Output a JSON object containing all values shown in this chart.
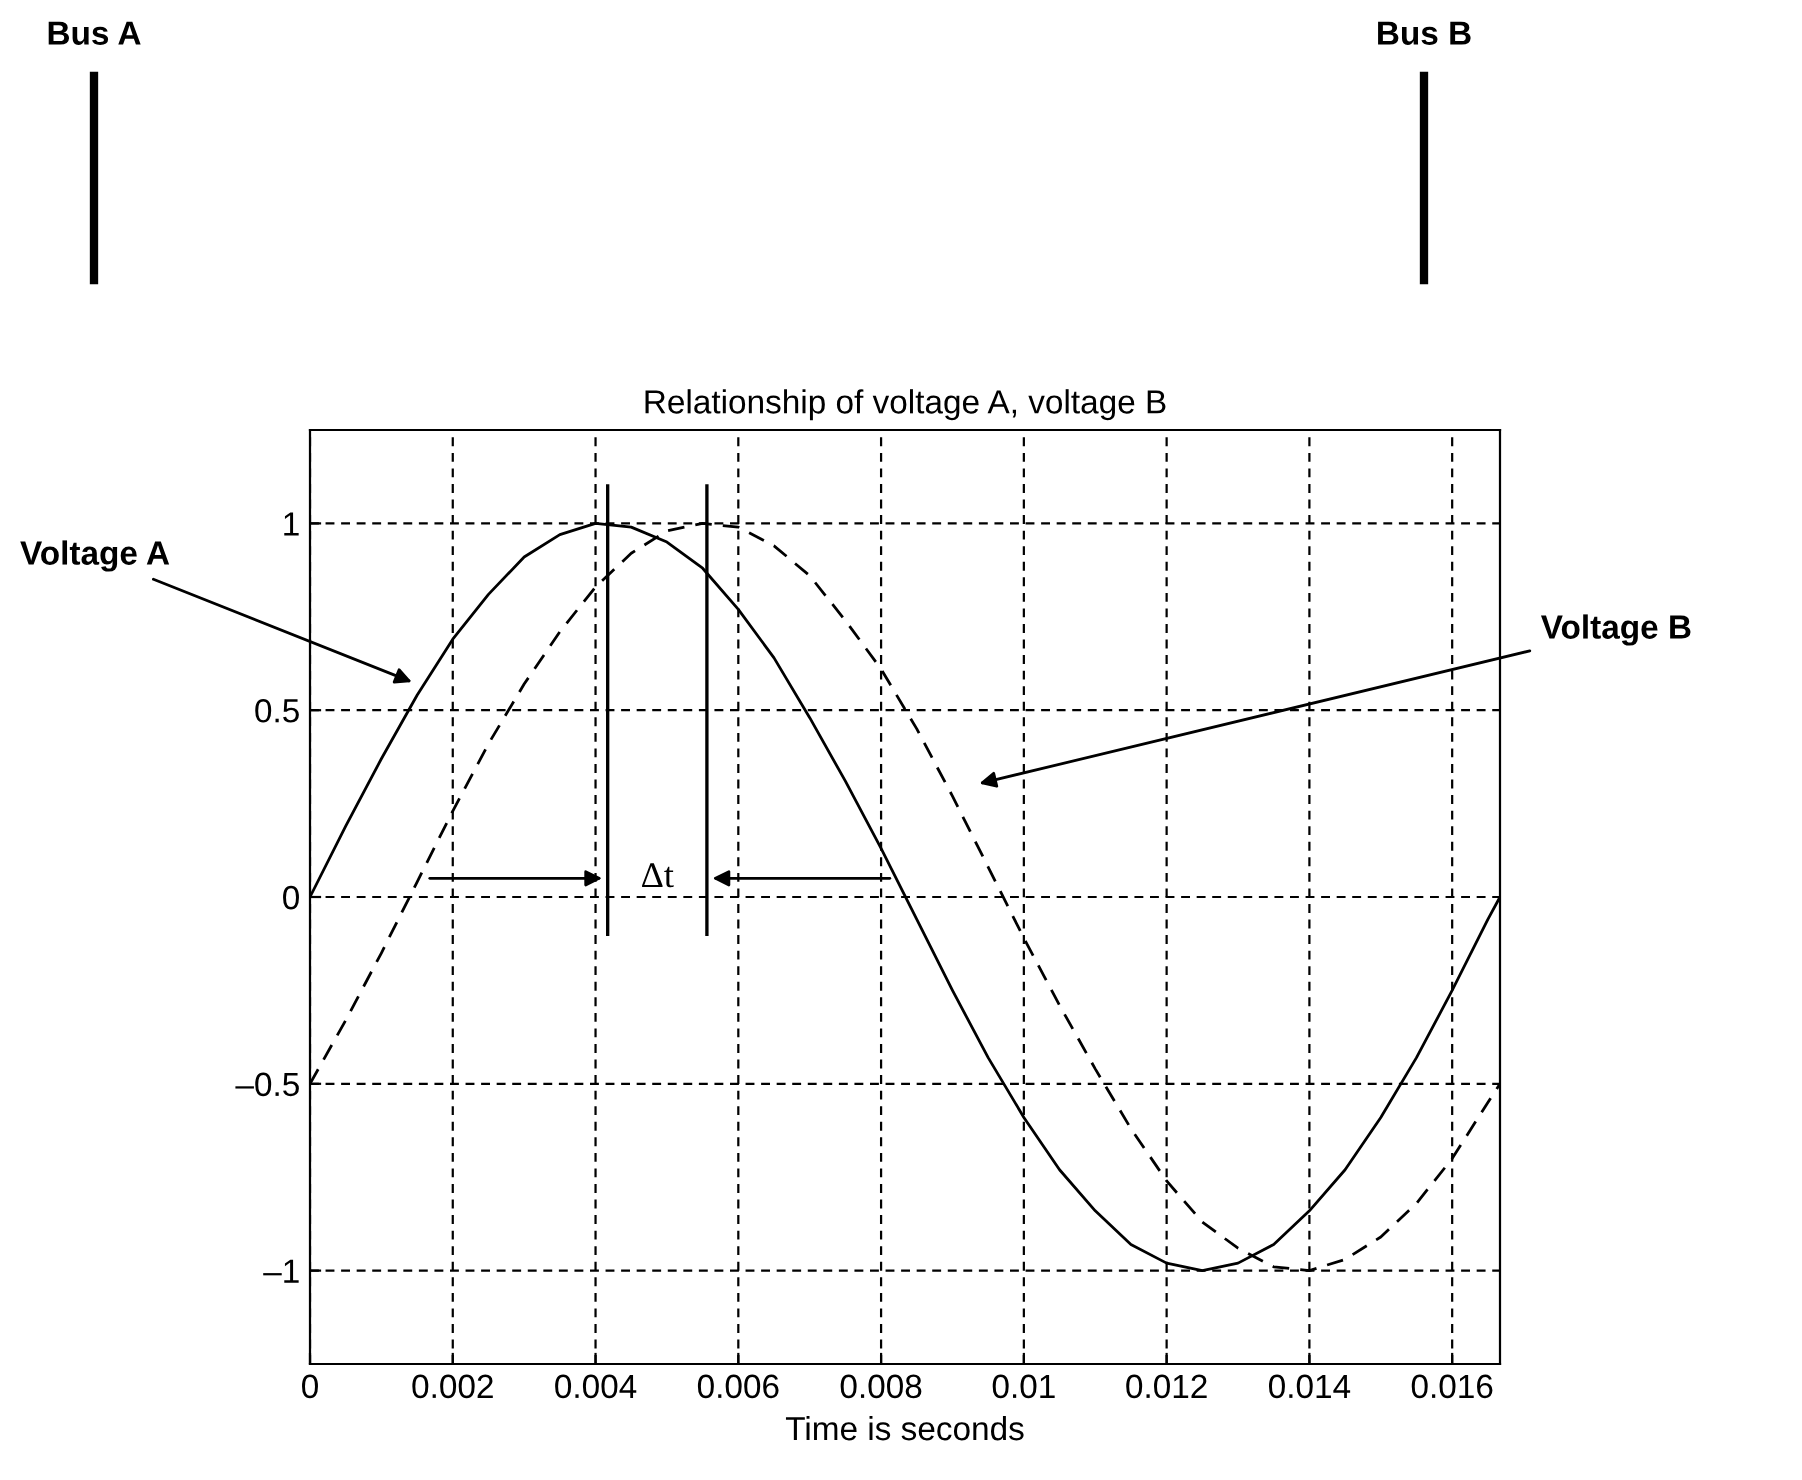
{
  "chart_data": {
    "type": "line",
    "title": "Relationship of voltage A, voltage B",
    "xlabel": "Time is seconds",
    "x": [
      0,
      0.0005,
      0.001,
      0.0015,
      0.002,
      0.0025,
      0.003,
      0.0035,
      0.004,
      0.0045,
      0.005,
      0.0055,
      0.006,
      0.0065,
      0.007,
      0.0075,
      0.008,
      0.0085,
      0.009,
      0.0095,
      0.01,
      0.0105,
      0.011,
      0.0115,
      0.012,
      0.0125,
      0.013,
      0.0135,
      0.014,
      0.0145,
      0.015,
      0.0155,
      0.016,
      0.0165,
      0.01667
    ],
    "series": [
      {
        "name": "Voltage A",
        "color": "#000000",
        "line_style": "solid",
        "values": [
          0,
          0.19,
          0.37,
          0.54,
          0.69,
          0.81,
          0.91,
          0.97,
          1.0,
          0.99,
          0.95,
          0.88,
          0.77,
          0.64,
          0.48,
          0.31,
          0.13,
          -0.06,
          -0.25,
          -0.43,
          -0.59,
          -0.73,
          -0.84,
          -0.93,
          -0.98,
          -1.0,
          -0.98,
          -0.93,
          -0.84,
          -0.73,
          -0.59,
          -0.43,
          -0.25,
          -0.06,
          0
        ]
      },
      {
        "name": "Voltage B",
        "color": "#000000",
        "line_style": "dashed",
        "values": [
          -0.5,
          -0.33,
          -0.15,
          0.04,
          0.23,
          0.41,
          0.57,
          0.71,
          0.83,
          0.92,
          0.98,
          1.0,
          0.99,
          0.94,
          0.86,
          0.74,
          0.61,
          0.45,
          0.27,
          0.08,
          -0.11,
          -0.29,
          -0.46,
          -0.62,
          -0.76,
          -0.87,
          -0.94,
          -0.99,
          -1.0,
          -0.97,
          -0.91,
          -0.82,
          -0.7,
          -0.55,
          -0.5
        ]
      }
    ],
    "xlim": [
      0,
      0.01667
    ],
    "ylim": [
      -1.25,
      1.25
    ],
    "xticks": [
      0,
      0.002,
      0.004,
      0.006,
      0.008,
      0.01,
      0.012,
      0.014,
      0.016
    ],
    "yticks": [
      {
        "value": -1,
        "label": "–1"
      },
      {
        "value": -0.5,
        "label": "–0.5"
      },
      0,
      0.5,
      1
    ],
    "grid": true,
    "legend": false,
    "marker": "none",
    "ref_lines": [
      {
        "axis": "x",
        "value": 0.00417,
        "color": "#000000"
      },
      {
        "axis": "x",
        "value": 0.00556,
        "color": "#000000"
      }
    ],
    "annotations": [
      {
        "text": "Δt",
        "x": 0.00556,
        "y": 0.05
      },
      "Bus A",
      "Bus B"
    ]
  }
}
